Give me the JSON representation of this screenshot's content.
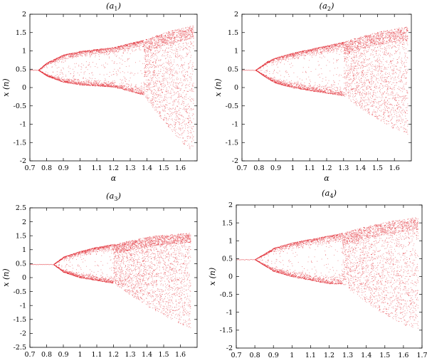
{
  "chart_data": [
    {
      "type": "scatter",
      "title": "(a1)",
      "title_main": "a",
      "title_sub": "1",
      "xlabel": "α",
      "ylabel": "x (n)",
      "xlim": [
        0.7,
        1.7
      ],
      "ylim": [
        -2,
        2
      ],
      "xticks": [
        "0.7",
        "0.8",
        "0.9",
        "1",
        "1.1",
        "1.2",
        "1.3",
        "1.4",
        "1.5",
        "1.6"
      ],
      "yticks": [
        "2",
        "1.5",
        "1",
        "0.5",
        "0",
        "-0.5",
        "-1",
        "-1.5",
        "-2"
      ],
      "color": "#e0202a",
      "grid": false,
      "bifurcation": {
        "fixed_point": 0.48,
        "first_split": 0.75,
        "upper_branch": [
          [
            0.75,
            0.48
          ],
          [
            0.8,
            0.68
          ],
          [
            0.9,
            0.9
          ],
          [
            1.0,
            1.0
          ],
          [
            1.1,
            1.05
          ],
          [
            1.2,
            1.1
          ],
          [
            1.3,
            1.22
          ],
          [
            1.38,
            1.3
          ]
        ],
        "lower_branch": [
          [
            0.75,
            0.48
          ],
          [
            0.8,
            0.32
          ],
          [
            0.9,
            0.15
          ],
          [
            1.0,
            0.08
          ],
          [
            1.1,
            0.05
          ],
          [
            1.2,
            0.02
          ],
          [
            1.3,
            -0.1
          ],
          [
            1.38,
            -0.2
          ]
        ],
        "chaos_start": 1.38,
        "chaos_range_at_end": [
          -1.8,
          1.8
        ],
        "x_end": 1.68
      }
    },
    {
      "type": "scatter",
      "title": "(a2)",
      "title_main": "a",
      "title_sub": "2",
      "xlabel": "α",
      "ylabel": "x (n)",
      "xlim": [
        0.7,
        1.7
      ],
      "ylim": [
        -2,
        2
      ],
      "xticks": [
        "0.7",
        "0.8",
        "0.9",
        "1",
        "1.1",
        "1.2",
        "1.3",
        "1.4",
        "1.5",
        "1.6"
      ],
      "yticks": [
        "2",
        "1.5",
        "1",
        "0.5",
        "0",
        "-0.5",
        "-1",
        "-1.5",
        "-2"
      ],
      "color": "#e0202a",
      "grid": false,
      "bifurcation": {
        "fixed_point": 0.48,
        "first_split": 0.78,
        "upper_branch": [
          [
            0.78,
            0.48
          ],
          [
            0.85,
            0.72
          ],
          [
            0.9,
            0.82
          ],
          [
            1.0,
            0.95
          ],
          [
            1.1,
            1.05
          ],
          [
            1.2,
            1.15
          ],
          [
            1.3,
            1.25
          ],
          [
            1.4,
            1.35
          ]
        ],
        "lower_branch": [
          [
            0.78,
            0.48
          ],
          [
            0.85,
            0.25
          ],
          [
            0.9,
            0.12
          ],
          [
            1.0,
            0.0
          ],
          [
            1.1,
            -0.08
          ],
          [
            1.2,
            -0.15
          ],
          [
            1.3,
            -0.22
          ],
          [
            1.4,
            -0.3
          ]
        ],
        "chaos_start": 1.3,
        "chaos_range_at_end": [
          -1.3,
          1.7
        ],
        "x_end": 1.68
      }
    },
    {
      "type": "scatter",
      "title": "(a3)",
      "title_main": "a",
      "title_sub": "3",
      "xlabel": "α",
      "ylabel": "x (n)",
      "xlim": [
        0.7,
        1.7
      ],
      "ylim": [
        -2.5,
        2.5
      ],
      "xticks": [
        "0.7",
        "0.8",
        "0.9",
        "1",
        "1.1",
        "1.2",
        "1.3",
        "1.4",
        "1.5",
        "1.6"
      ],
      "yticks": [
        "2.5",
        "2",
        "1.5",
        "1",
        "0.5",
        "0",
        "-0.5",
        "-1",
        "-1.5",
        "-2",
        "-2.5"
      ],
      "color": "#e0202a",
      "grid": false,
      "bifurcation": {
        "fixed_point": 0.48,
        "first_split": 0.84,
        "upper_branch": [
          [
            0.84,
            0.48
          ],
          [
            0.9,
            0.75
          ],
          [
            1.0,
            0.95
          ],
          [
            1.1,
            1.1
          ],
          [
            1.2,
            1.2
          ],
          [
            1.3,
            1.3
          ],
          [
            1.4,
            1.4
          ],
          [
            1.5,
            1.45
          ]
        ],
        "lower_branch": [
          [
            0.84,
            0.48
          ],
          [
            0.9,
            0.2
          ],
          [
            1.0,
            0.0
          ],
          [
            1.1,
            -0.1
          ],
          [
            1.2,
            -0.2
          ],
          [
            1.3,
            -0.3
          ],
          [
            1.4,
            -0.4
          ],
          [
            1.5,
            -0.5
          ]
        ],
        "chaos_start": 1.2,
        "chaos_range_at_end": [
          -1.8,
          1.7
        ],
        "x_end": 1.66
      }
    },
    {
      "type": "scatter",
      "title": "(a4)",
      "title_main": "a",
      "title_sub": "4",
      "xlabel": "α",
      "ylabel": "x (n)",
      "xlim": [
        0.7,
        1.7
      ],
      "ylim": [
        -2,
        2
      ],
      "xticks": [
        "0.7",
        "0.8",
        "0.9",
        "1",
        "1.1",
        "1.2",
        "1.3",
        "1.4",
        "1.5",
        "1.6",
        "1.7"
      ],
      "yticks": [
        "2",
        "1.5",
        "1",
        "0.5",
        "0",
        "-0.5",
        "-1",
        "-1.5",
        "-2"
      ],
      "color": "#e0202a",
      "grid": false,
      "bifurcation": {
        "fixed_point": 0.48,
        "first_split": 0.8,
        "upper_branch": [
          [
            0.8,
            0.48
          ],
          [
            0.9,
            0.8
          ],
          [
            1.0,
            0.95
          ],
          [
            1.1,
            1.05
          ],
          [
            1.2,
            1.15
          ],
          [
            1.27,
            1.22
          ],
          [
            1.4,
            1.35
          ],
          [
            1.5,
            1.45
          ]
        ],
        "lower_branch": [
          [
            0.8,
            0.48
          ],
          [
            0.9,
            0.15
          ],
          [
            1.0,
            0.0
          ],
          [
            1.1,
            -0.1
          ],
          [
            1.2,
            -0.2
          ],
          [
            1.27,
            -0.2
          ],
          [
            1.4,
            -0.35
          ],
          [
            1.5,
            -0.5
          ]
        ],
        "chaos_start": 1.27,
        "chaos_range_at_end": [
          -1.5,
          1.7
        ],
        "x_end": 1.68
      }
    }
  ]
}
